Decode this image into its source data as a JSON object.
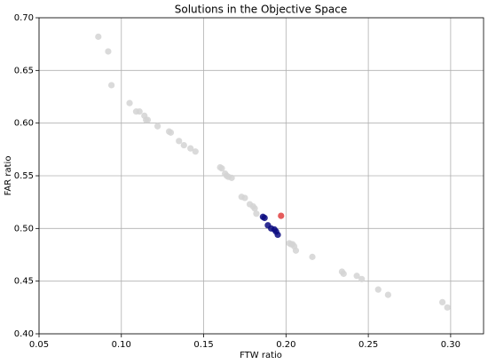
{
  "chart_data": {
    "type": "scatter",
    "title": "Solutions in the Objective Space",
    "x_label": "FTW ratio",
    "y_label": "FAR ratio",
    "xlim": [
      0.05,
      0.32
    ],
    "ylim": [
      0.4,
      0.7
    ],
    "xticks": [
      0.05,
      {
        "value": 0.1,
        "label": "0.10"
      },
      0.15,
      {
        "value": 0.2,
        "label": "0.20"
      },
      0.25,
      {
        "value": 0.3,
        "label": "0.30"
      }
    ],
    "yticks": [
      {
        "value": 0.4,
        "label": "0.40"
      },
      0.45,
      {
        "value": 0.5,
        "label": "0.50"
      },
      0.55,
      {
        "value": 0.6,
        "label": "0.60"
      },
      0.65,
      {
        "value": 0.7,
        "label": "0.70"
      }
    ],
    "grid": true,
    "series": [
      {
        "color": "#d3d3d3",
        "x": [
          0.086,
          0.092,
          0.094,
          0.105,
          0.109,
          0.111,
          0.114,
          0.115,
          0.116,
          0.122,
          0.129,
          0.13,
          0.135,
          0.138,
          0.142,
          0.145,
          0.16,
          0.161,
          0.163,
          0.164,
          0.165,
          0.167,
          0.173,
          0.175,
          0.178,
          0.18,
          0.181,
          0.182,
          0.202,
          0.203,
          0.204,
          0.205,
          0.206,
          0.216,
          0.234,
          0.235,
          0.243,
          0.246,
          0.256,
          0.262,
          0.295,
          0.298
        ],
        "values": [
          0.682,
          0.668,
          0.636,
          0.619,
          0.611,
          0.611,
          0.607,
          0.603,
          0.603,
          0.597,
          0.592,
          0.591,
          0.583,
          0.579,
          0.576,
          0.573,
          0.558,
          0.557,
          0.552,
          0.55,
          0.549,
          0.548,
          0.53,
          0.529,
          0.523,
          0.521,
          0.519,
          0.514,
          0.486,
          0.485,
          0.485,
          0.483,
          0.479,
          0.473,
          0.459,
          0.457,
          0.455,
          0.452,
          0.442,
          0.437,
          0.43,
          0.425
        ]
      },
      {
        "color": "#0a0a80",
        "x": [
          0.186,
          0.187,
          0.189,
          0.191,
          0.193,
          0.194,
          0.195
        ],
        "values": [
          0.511,
          0.51,
          0.503,
          0.5,
          0.499,
          0.497,
          0.494
        ]
      },
      {
        "color": "#e04040",
        "x": [
          0.197
        ],
        "values": [
          0.512
        ]
      }
    ]
  }
}
